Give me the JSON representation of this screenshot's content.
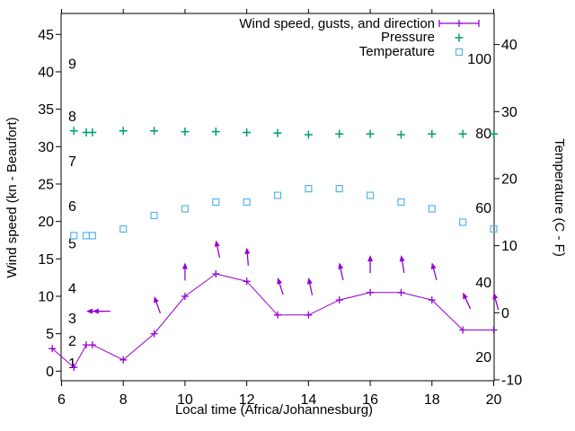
{
  "chart_data": {
    "type": "line",
    "title": "",
    "xlabel": "Local time (Africa/Johannesburg)",
    "ylabel": "Wind speed (kn - Beaufort)",
    "y2label": "Temperature (C - F)",
    "x_range": [
      6,
      20
    ],
    "x_ticks": [
      6,
      8,
      10,
      12,
      14,
      16,
      18,
      20
    ],
    "left_axis": {
      "unit": "kn",
      "ticks": [
        0,
        5,
        10,
        15,
        20,
        25,
        30,
        35,
        40,
        45
      ]
    },
    "right_axis": {
      "unit": "C",
      "ticks": [
        -10,
        0,
        10,
        20,
        30,
        40
      ]
    },
    "beaufort_scale": [
      {
        "bft": "1",
        "kn": 1
      },
      {
        "bft": "2",
        "kn": 4
      },
      {
        "bft": "3",
        "kn": 7
      },
      {
        "bft": "4",
        "kn": 11
      },
      {
        "bft": "5",
        "kn": 17
      },
      {
        "bft": "6",
        "kn": 22
      },
      {
        "bft": "7",
        "kn": 28
      },
      {
        "bft": "8",
        "kn": 34
      },
      {
        "bft": "9",
        "kn": 41
      }
    ],
    "fahrenheit_scale": [
      20,
      40,
      60,
      80,
      100
    ],
    "legend": {
      "position": "top-right",
      "entries": [
        "Wind speed, gusts, and direction",
        "Pressure",
        "Temperature"
      ]
    },
    "colors": {
      "wind": "#9400d3",
      "pressure": "#009e73",
      "temperature": "#56b4e9",
      "axis": "#000000"
    },
    "series": {
      "wind": {
        "name": "Wind speed, gusts, and direction",
        "color": "#9400d3",
        "marker": "plus",
        "x": [
          5.7,
          6.4,
          6.8,
          7.0,
          8,
          9,
          10,
          11,
          12,
          13,
          14,
          15,
          16,
          17,
          18,
          19,
          20
        ],
        "kn": [
          3,
          0.5,
          3.5,
          3.5,
          1.5,
          5,
          10,
          13,
          12,
          7.5,
          7.5,
          9.5,
          10.5,
          10.5,
          9.5,
          5.5,
          5.5
        ]
      },
      "gusts": {
        "name": "gust direction arrows",
        "color": "#9400d3",
        "style": "arrows",
        "x": [
          6.8,
          7.0,
          9,
          10,
          11,
          12,
          13,
          14,
          15,
          16,
          17,
          18,
          19,
          20
        ],
        "tip_kn": [
          8,
          8,
          10,
          14.5,
          17.5,
          16.5,
          12.5,
          12.5,
          14.5,
          15.5,
          15.5,
          14.5,
          10.5,
          10.5
        ],
        "angle_deg": [
          -90,
          -90,
          -20,
          0,
          -12,
          -5,
          -18,
          -12,
          -12,
          0,
          -10,
          -15,
          -25,
          -15
        ]
      },
      "pressure": {
        "name": "Pressure",
        "color": "#009e73",
        "marker": "plus",
        "x": [
          6.4,
          6.8,
          7.0,
          8,
          9,
          10,
          11,
          12,
          13,
          14,
          15,
          16,
          17,
          18,
          19,
          20
        ],
        "value_on_left_axis": [
          32.1,
          31.9,
          31.9,
          32.1,
          32.1,
          32.0,
          32.0,
          31.9,
          31.8,
          31.6,
          31.7,
          31.7,
          31.6,
          31.7,
          31.7,
          31.7
        ]
      },
      "temperature": {
        "name": "Temperature",
        "color": "#56b4e9",
        "marker": "open-square",
        "x": [
          6.4,
          6.8,
          7.0,
          8,
          9,
          10,
          11,
          12,
          13,
          14,
          15,
          16,
          17,
          18,
          19,
          20
        ],
        "celsius": [
          11.5,
          11.5,
          11.5,
          12.5,
          14.5,
          15.5,
          16.5,
          16.5,
          17.5,
          18.5,
          18.5,
          17.5,
          16.5,
          15.5,
          13.5,
          12.5
        ]
      }
    }
  }
}
